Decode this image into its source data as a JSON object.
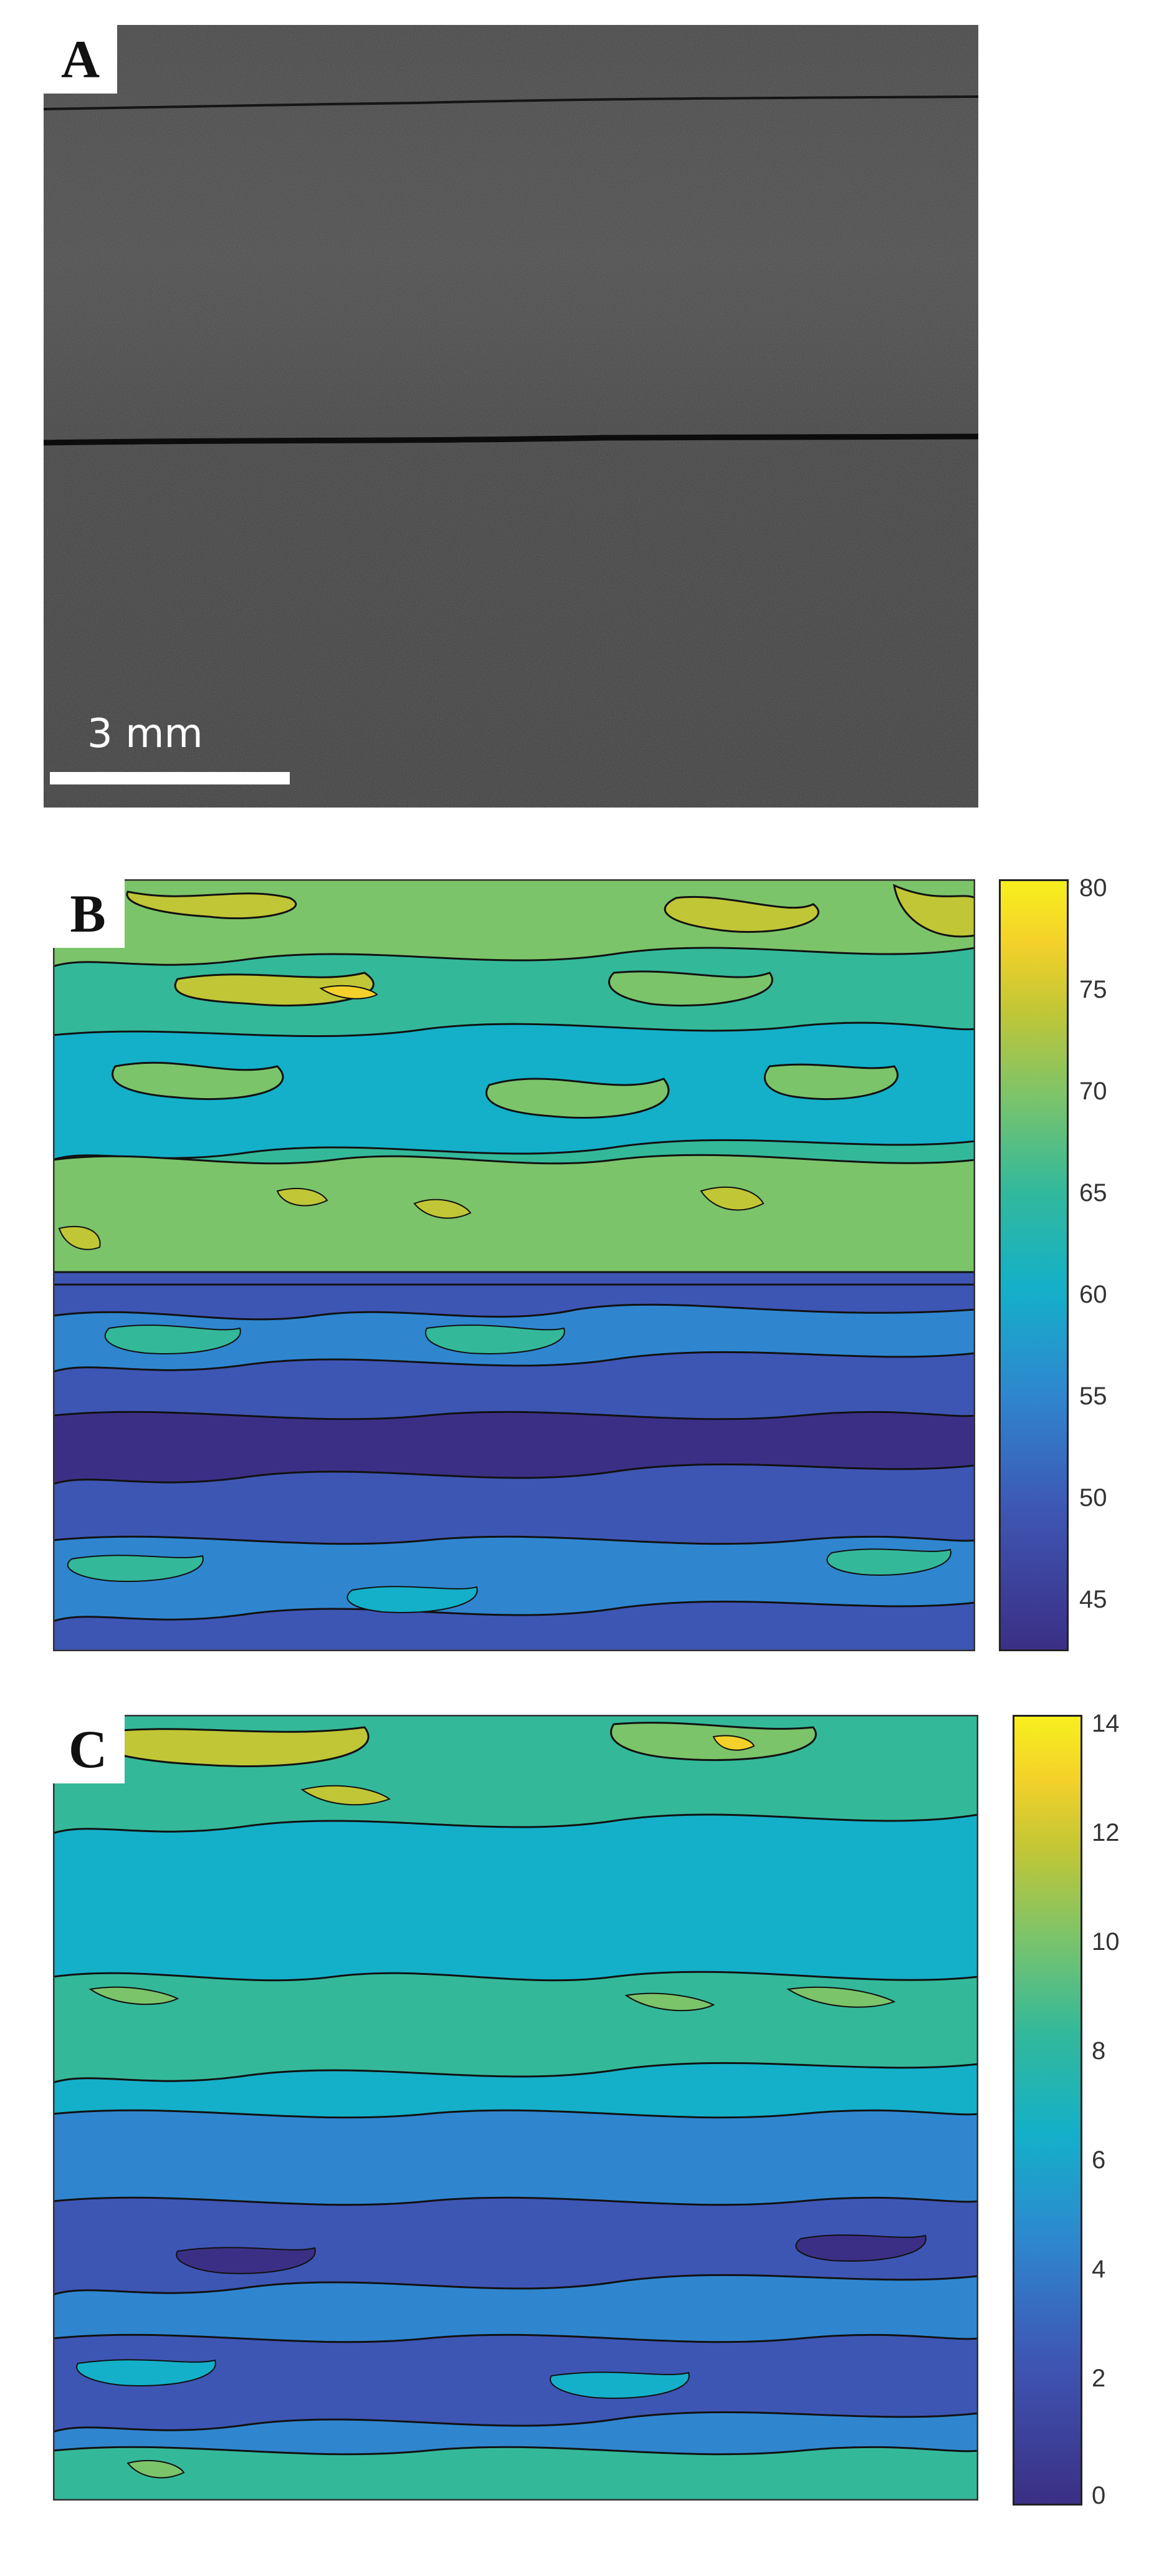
{
  "panels": [
    {
      "letter": "A",
      "scale_label": "3 mm"
    },
    {
      "letter": "B",
      "colorbar": {
        "ticks": [
          "80",
          "75",
          "70",
          "65",
          "60",
          "55",
          "50",
          "45"
        ],
        "min": 42,
        "max": 80
      }
    },
    {
      "letter": "C",
      "colorbar": {
        "ticks": [
          "14",
          "12",
          "10",
          "8",
          "6",
          "4",
          "2",
          "0"
        ],
        "min": 0,
        "max": 14
      }
    }
  ],
  "colors": {
    "viridis_like": [
      "#3b2f85",
      "#3e56b3",
      "#2f86cf",
      "#14b0c9",
      "#33b99a",
      "#7cc46a",
      "#c1c636",
      "#f4d12a",
      "#f7ef1e"
    ],
    "photo_dark": "#3a3a3a",
    "photo_light": "#9a9a9a"
  }
}
